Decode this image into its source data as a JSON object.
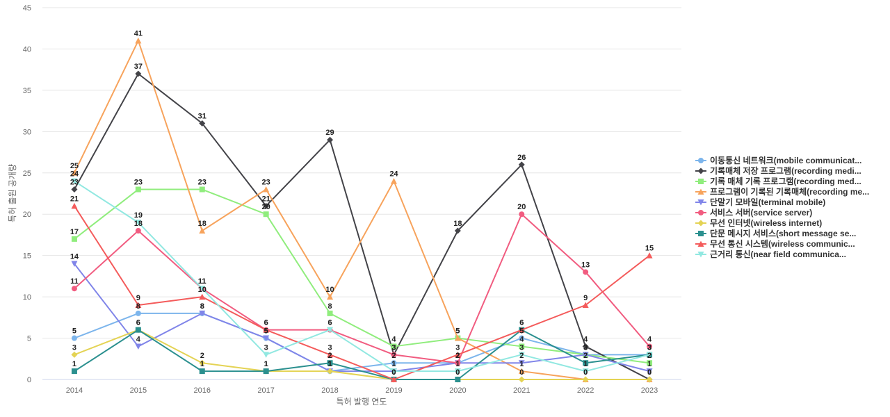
{
  "chart_data": {
    "type": "line",
    "title": "",
    "xlabel": "특허 발행 연도",
    "ylabel": "특허 출원 공개량",
    "x": [
      "2014",
      "2015",
      "2016",
      "2017",
      "2018",
      "2019",
      "2020",
      "2021",
      "2022",
      "2023"
    ],
    "ylim": [
      0,
      45
    ],
    "yticks": [
      0,
      5,
      10,
      15,
      20,
      25,
      30,
      35,
      40,
      45
    ],
    "grid": true,
    "legend_position": "right",
    "series": [
      {
        "name": "이동통신 네트워크(mobile communicat...",
        "color": "#7cb5ec",
        "marker": "circle",
        "values": [
          5,
          8,
          8,
          5,
          1,
          2,
          2,
          5,
          3,
          3
        ]
      },
      {
        "name": "기록매체 저장 프로그램(recording medi...",
        "color": "#434348",
        "marker": "diamond",
        "values": [
          23,
          37,
          31,
          21,
          29,
          3,
          18,
          26,
          4,
          0
        ]
      },
      {
        "name": "기록 매체 기록 프로그램(recording med...",
        "color": "#90ed7d",
        "marker": "square",
        "values": [
          17,
          23,
          23,
          20,
          8,
          4,
          5,
          4,
          3,
          2
        ]
      },
      {
        "name": "프로그램이 기록된 기록매체(recording me...",
        "color": "#f7a35c",
        "marker": "triangle",
        "values": [
          25,
          41,
          18,
          23,
          10,
          24,
          5,
          1,
          0,
          0
        ]
      },
      {
        "name": "단말기 모바일(terminal mobile)",
        "color": "#8085e9",
        "marker": "triangle-down",
        "values": [
          14,
          4,
          8,
          5,
          1,
          1,
          2,
          2,
          3,
          1
        ]
      },
      {
        "name": "서비스 서버(service server)",
        "color": "#f15c80",
        "marker": "circle",
        "values": [
          11,
          18,
          11,
          6,
          6,
          3,
          2,
          20,
          13,
          4
        ]
      },
      {
        "name": "무선 인터넷(wireless internet)",
        "color": "#e4d354",
        "marker": "diamond",
        "values": [
          3,
          6,
          2,
          1,
          1,
          0,
          0,
          0,
          0,
          0
        ]
      },
      {
        "name": "단문 메시지 서비스(short message se...",
        "color": "#2b908f",
        "marker": "square",
        "values": [
          1,
          6,
          1,
          1,
          2,
          0,
          0,
          6,
          2,
          3
        ]
      },
      {
        "name": "무선 통신 시스템(wireless communic...",
        "color": "#f45b5b",
        "marker": "triangle",
        "values": [
          21,
          9,
          10,
          6,
          3,
          0,
          3,
          6,
          9,
          15
        ]
      },
      {
        "name": "근거리 통신(near field communica...",
        "color": "#91e8e1",
        "marker": "triangle-down",
        "values": [
          24,
          19,
          11,
          3,
          6,
          1,
          1,
          3,
          1,
          3
        ]
      }
    ]
  }
}
